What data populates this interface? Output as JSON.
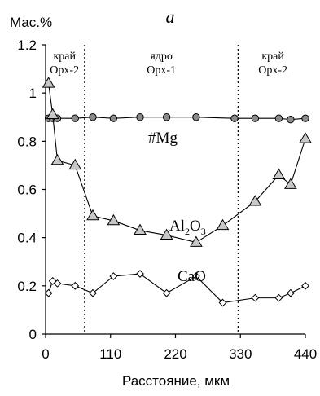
{
  "chart_data": {
    "type": "line",
    "title": "a",
    "ylabel": "Мас.%",
    "xlabel": "Расстояние, мкм",
    "xlim": [
      0,
      440
    ],
    "ylim": [
      0,
      1.2
    ],
    "xticks": [
      "0",
      "110",
      "220",
      "330",
      "440"
    ],
    "xtick_values": [
      0,
      110,
      220,
      330,
      440
    ],
    "yticks": [
      "0",
      "0.2",
      "0.4",
      "0.6",
      "0.8",
      "1",
      "1.2"
    ],
    "ytick_values": [
      0,
      0.2,
      0.4,
      0.6,
      0.8,
      1.0,
      1.2
    ],
    "zone_dividers": [
      66,
      326
    ],
    "zones": [
      {
        "name": "край",
        "sub": "Opx-2",
        "x": 32
      },
      {
        "name": "ядро",
        "sub": "Opx-1",
        "x": 196
      },
      {
        "name": "край",
        "sub": "Opx-2",
        "x": 385
      }
    ],
    "series": [
      {
        "label_main": "#Mg",
        "label_sub": "",
        "label_tail": "",
        "marker": "circle",
        "fill": "#8a8a8a",
        "x": [
          5,
          12,
          20,
          50,
          80,
          115,
          160,
          205,
          255,
          320,
          355,
          395,
          415,
          440
        ],
        "y": [
          0.895,
          0.895,
          0.895,
          0.895,
          0.9,
          0.895,
          0.9,
          0.9,
          0.9,
          0.895,
          0.895,
          0.895,
          0.89,
          0.895
        ]
      },
      {
        "label_main": "Al",
        "label_sub": "2",
        "label_tail": "O",
        "label_sub2": "3",
        "marker": "triangle",
        "fill": "#c8c8c8",
        "x": [
          5,
          12,
          20,
          50,
          80,
          115,
          160,
          205,
          255,
          300,
          355,
          395,
          415,
          440
        ],
        "y": [
          1.04,
          0.91,
          0.72,
          0.7,
          0.49,
          0.47,
          0.43,
          0.41,
          0.38,
          0.45,
          0.55,
          0.66,
          0.62,
          0.81
        ]
      },
      {
        "label_main": "CaO",
        "label_sub": "",
        "label_tail": "",
        "marker": "diamond",
        "fill": "#ffffff",
        "x": [
          5,
          12,
          20,
          50,
          80,
          115,
          160,
          205,
          255,
          300,
          355,
          395,
          415,
          440
        ],
        "y": [
          0.17,
          0.22,
          0.21,
          0.2,
          0.17,
          0.24,
          0.25,
          0.17,
          0.24,
          0.13,
          0.15,
          0.15,
          0.17,
          0.2
        ]
      }
    ]
  }
}
